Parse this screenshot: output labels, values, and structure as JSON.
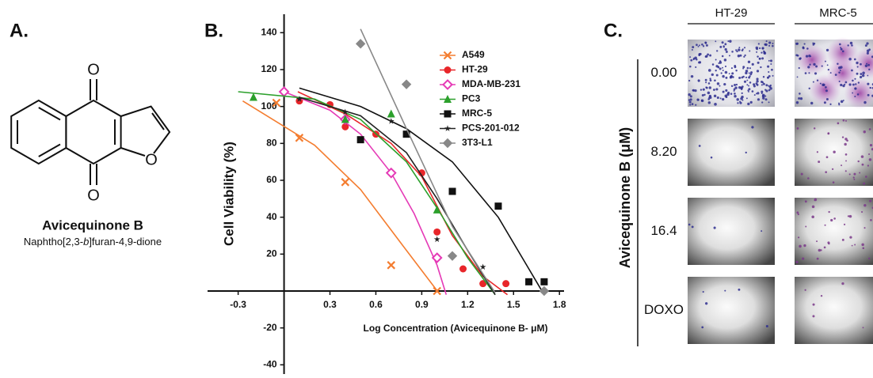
{
  "panel_a": {
    "label": "A.",
    "atoms": [
      "O",
      "O",
      "O"
    ],
    "compound": "Avicequinone B",
    "name_parts": [
      "Naphtho[2,3-",
      "b",
      "]furan-4,9-dione"
    ]
  },
  "chart_data": {
    "type": "line",
    "panel_label": "B.",
    "x_label": "Log Concentration (Avicequinone B- μM)",
    "y_label": "Cell Viability (%)",
    "xlim": [
      -0.5,
      1.83
    ],
    "ylim": [
      -45,
      150
    ],
    "xticks": [
      -0.3,
      0.3,
      0.6,
      0.9,
      1.2,
      1.5,
      1.8
    ],
    "yticks": [
      -40,
      -20,
      20,
      40,
      60,
      80,
      100,
      120,
      140
    ],
    "legend": "upper right",
    "series": [
      {
        "name": "A549",
        "color": "#f47d30",
        "marker": "x",
        "x": [
          -0.05,
          0.1,
          0.4,
          0.7,
          1.0
        ],
        "values": [
          102,
          83,
          59,
          14,
          0
        ],
        "curve_x": [
          -0.27,
          0.2,
          0.5,
          0.8,
          1.02
        ],
        "curve_y": [
          103,
          79,
          55,
          22,
          -2
        ]
      },
      {
        "name": "HT-29",
        "color": "#e8262a",
        "marker": "circle",
        "x": [
          0.1,
          0.3,
          0.4,
          0.6,
          0.9,
          1.0,
          1.17,
          1.3,
          1.45
        ],
        "values": [
          103,
          101,
          89,
          85,
          64,
          32,
          12,
          4,
          4
        ],
        "curve_x": [
          0.09,
          0.4,
          0.7,
          0.9,
          1.1,
          1.3,
          1.46
        ],
        "curve_y": [
          108,
          96,
          80,
          62,
          30,
          8,
          -2
        ]
      },
      {
        "name": "MDA-MB-231",
        "color": "#e53ab6",
        "marker": "diamond-open",
        "x": [
          0.0,
          0.4,
          0.7,
          1.0
        ],
        "values": [
          108,
          93,
          64,
          18
        ],
        "curve_x": [
          0.0,
          0.3,
          0.5,
          0.7,
          0.85,
          1.0,
          1.06
        ],
        "curve_y": [
          108,
          98,
          85,
          64,
          42,
          14,
          -2
        ]
      },
      {
        "name": "PC3",
        "color": "#2ca02c",
        "marker": "triangle",
        "x": [
          -0.2,
          0.4,
          0.7,
          1.0
        ],
        "values": [
          105,
          93,
          96,
          44
        ],
        "curve_x": [
          -0.3,
          0.2,
          0.5,
          0.8,
          1.0,
          1.2,
          1.38
        ],
        "curve_y": [
          108,
          104,
          93,
          70,
          45,
          18,
          -2
        ]
      },
      {
        "name": "MRC-5",
        "color": "#111111",
        "marker": "square",
        "x": [
          0.5,
          0.8,
          1.1,
          1.4,
          1.6,
          1.7
        ],
        "values": [
          82,
          85,
          54,
          46,
          5,
          5
        ],
        "curve_x": [
          0.1,
          0.5,
          0.8,
          1.1,
          1.4,
          1.6,
          1.7
        ],
        "curve_y": [
          110,
          100,
          88,
          70,
          40,
          12,
          -2
        ]
      },
      {
        "name": "PCS-201-012",
        "color": "#222222",
        "marker": "star",
        "x": [
          0.1,
          0.4,
          0.7,
          1.0,
          1.3
        ],
        "values": [
          104,
          97,
          92,
          28,
          13
        ],
        "curve_x": [
          0.1,
          0.5,
          0.8,
          1.0,
          1.2,
          1.38
        ],
        "curve_y": [
          105,
          95,
          75,
          50,
          22,
          -2
        ]
      },
      {
        "name": "3T3-L1",
        "color": "#888888",
        "marker": "diamond",
        "x": [
          0.5,
          0.8,
          1.1,
          1.7
        ],
        "values": [
          134,
          112,
          19,
          0
        ],
        "curve_x": [
          0.5,
          0.8,
          1.1,
          1.38
        ],
        "curve_y": [
          142,
          88,
          35,
          -1
        ]
      }
    ]
  },
  "panel_c": {
    "label": "C.",
    "columns": [
      "HT-29",
      "MRC-5"
    ],
    "rows": [
      "0.00",
      "8.20",
      "16.4",
      "DOXO"
    ],
    "y_label": "Avicequinone B (μM)"
  }
}
